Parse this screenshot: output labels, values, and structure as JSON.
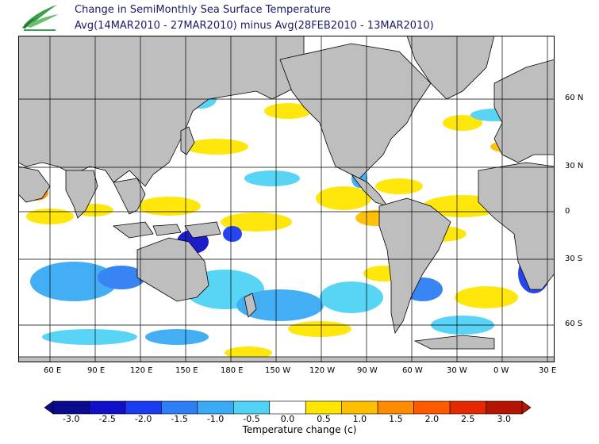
{
  "header": {
    "title": "Change in SemiMonthly Sea Surface Temperature",
    "subtitle": "Avg(14MAR2010 - 27MAR2010) minus Avg(28FEB2010 - 13MAR2010)"
  },
  "map": {
    "lon_labels": [
      "60 E",
      "90 E",
      "120 E",
      "150 E",
      "180 E",
      "150 W",
      "120 W",
      "90 W",
      "60 W",
      "30 W",
      "0 W",
      "30 E"
    ],
    "lat_labels": [
      "60 N",
      "30 N",
      "0",
      "30 S",
      "60 S"
    ],
    "land_color": "#bebebe",
    "ocean_color": "#ffffff"
  },
  "colorbar": {
    "ticks": [
      "-3.0",
      "-2.5",
      "-2.0",
      "-1.5",
      "-1.0",
      "-0.5",
      "0.0",
      "0.5",
      "1.0",
      "1.5",
      "2.0",
      "2.5",
      "3.0"
    ],
    "colors": [
      "#0a0a8c",
      "#1010c8",
      "#1a3cf0",
      "#2e7ef5",
      "#3aaaf5",
      "#50d2f5",
      "#ffffff",
      "#ffe600",
      "#ffbe00",
      "#ff8c00",
      "#ff5a00",
      "#e62800",
      "#b41400"
    ],
    "label": "Temperature change  (c)"
  }
}
